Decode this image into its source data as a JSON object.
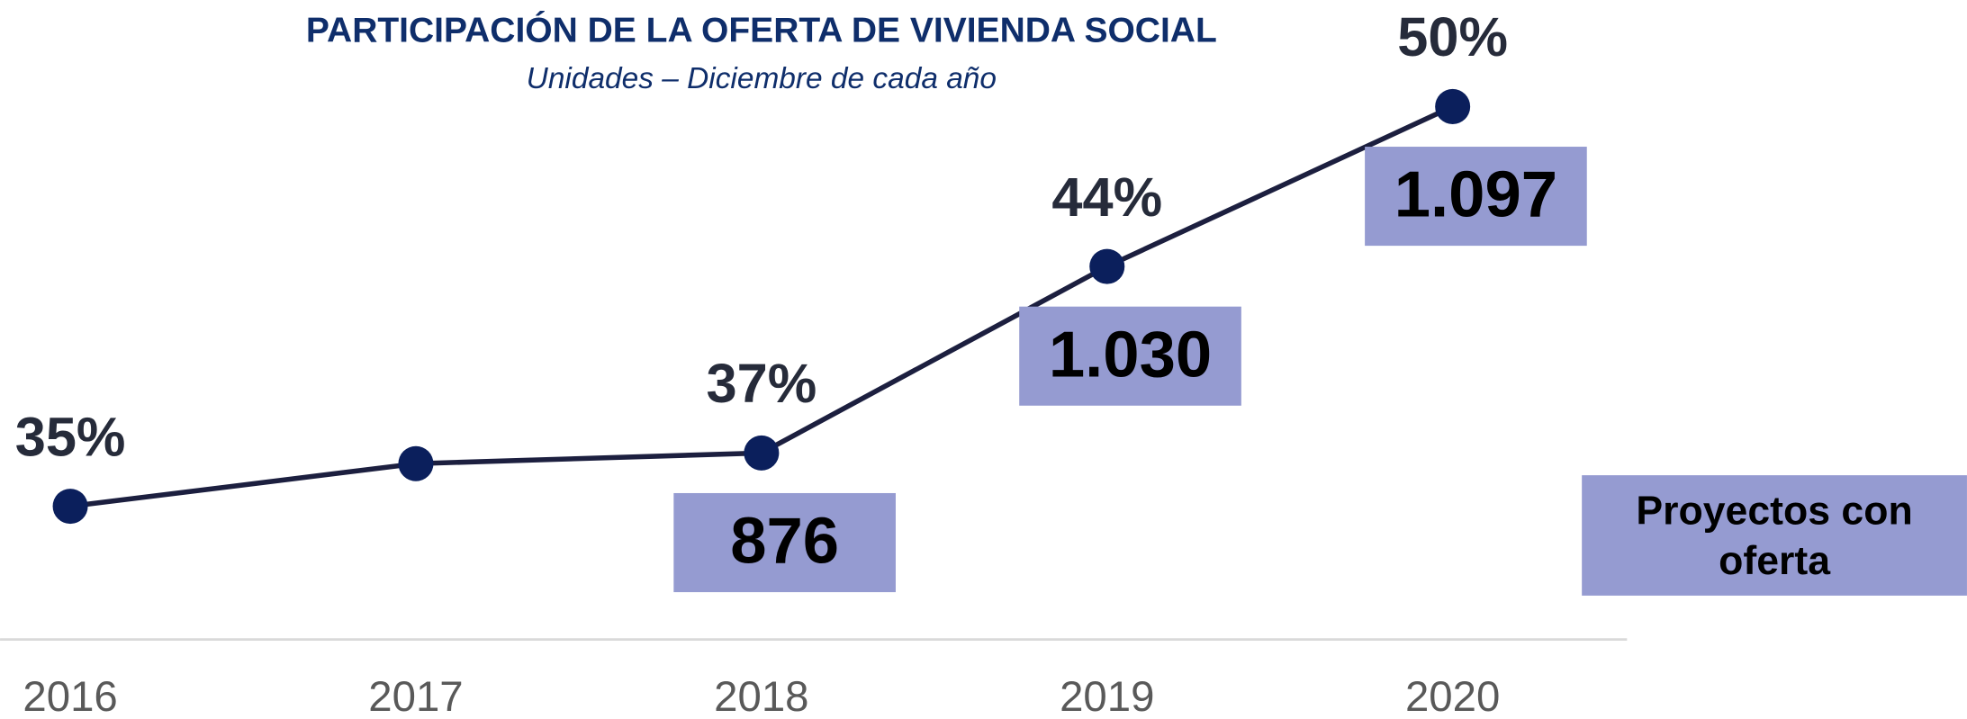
{
  "chart_data": {
    "type": "line",
    "title": "PARTICIPACIÓN DE LA OFERTA DE VIVIENDA SOCIAL",
    "subtitle": "Unidades – Diciembre de cada año",
    "categories": [
      "2016",
      "2017",
      "2018",
      "2019",
      "2020"
    ],
    "series": [
      {
        "name": "Participación",
        "color": "#1c1f3f",
        "marker_color": "#0b1f5c",
        "values": [
          35,
          36.6,
          37,
          44,
          50
        ],
        "value_labels": [
          "35%",
          null,
          "37%",
          "44%",
          "50%"
        ]
      }
    ],
    "boxes": {
      "name": "Proyectos con oferta",
      "color": "#959bd1",
      "values": [
        null,
        null,
        876,
        1030,
        1097
      ],
      "value_labels": [
        null,
        null,
        "876",
        "1.030",
        "1.097"
      ]
    },
    "ylim": [
      30,
      50
    ]
  }
}
